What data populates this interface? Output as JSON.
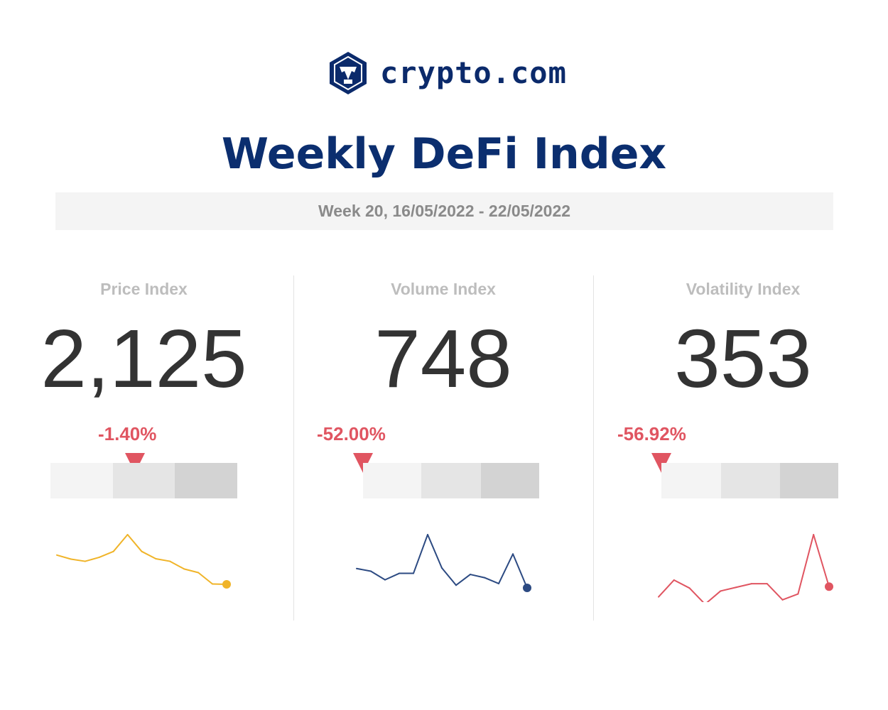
{
  "brand": {
    "logo_icon": "crypto-com-lion-hexagon",
    "name": "crypto.com",
    "color": "#0b2a6b"
  },
  "title": "Weekly DeFi Index",
  "week": "Week 20, 16/05/2022 - 22/05/2022",
  "colors": {
    "negative": "#e05561",
    "price_line": "#f0b429",
    "volume_line": "#2c4a82",
    "volatility_line": "#e05561"
  },
  "chart_data": [
    {
      "type": "line",
      "title": "Price Index",
      "value": "2,125",
      "change": "-1.40%",
      "series": [
        {
          "values": [
            84,
            73,
            67,
            78,
            94,
            140,
            94,
            74,
            67,
            46,
            36,
            5,
            4
          ]
        }
      ]
    },
    {
      "type": "line",
      "title": "Volume Index",
      "value": "748",
      "change": "-52.00%",
      "series": [
        {
          "values": [
            37,
            32,
            16,
            28,
            28,
            100,
            38,
            6,
            26,
            20,
            9,
            64,
            1
          ]
        }
      ]
    },
    {
      "type": "line",
      "title": "Volatility Index",
      "value": "353",
      "change": "-56.92%",
      "series": [
        {
          "values": [
            14,
            37,
            26,
            4,
            22,
            27,
            32,
            32,
            10,
            18,
            99,
            28
          ]
        }
      ]
    }
  ]
}
